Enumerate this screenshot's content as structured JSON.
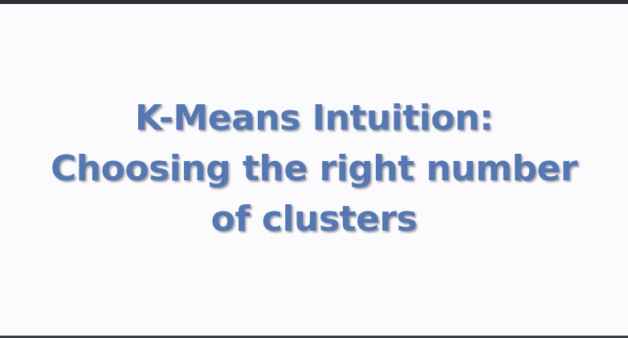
{
  "slide": {
    "title_lines": [
      "K-Means Intuition:",
      "Choosing the right number",
      "of clusters"
    ]
  },
  "colors": {
    "title": "#5577b2",
    "background": "#fbfbfd",
    "frame": "#2c2f33"
  }
}
